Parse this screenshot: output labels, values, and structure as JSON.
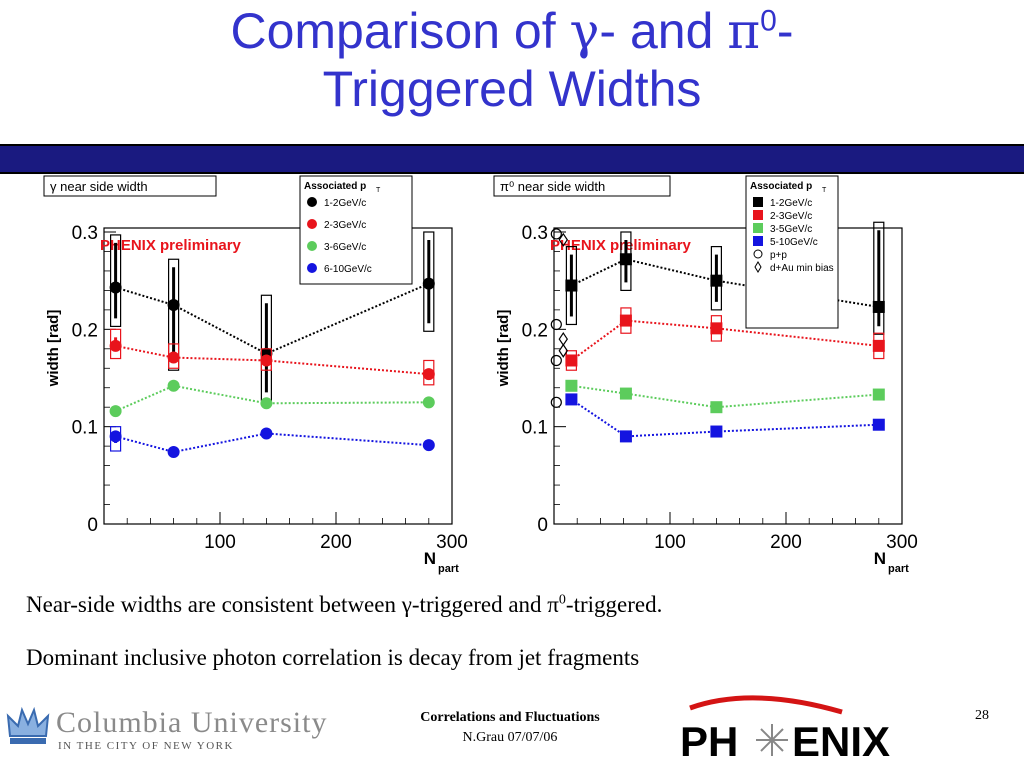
{
  "slide": {
    "title_line1_a": "Comparison of ",
    "title_gamma": "γ",
    "title_line1_b": "- and ",
    "title_pi": "π",
    "title_sup": "0",
    "title_line1_c": "-",
    "title_line2": "Triggered Widths",
    "body_line1_a": "Near-side widths are consistent between ",
    "body_gamma": "γ",
    "body_line1_b": "-triggered and ",
    "body_pi": "π",
    "body_sup": "0",
    "body_line1_c": "-triggered.",
    "body_line2": "Dominant inclusive photon correlation is decay from jet fragments",
    "footer_title": "Correlations and Fluctuations",
    "footer_author": "N.Grau 07/07/06",
    "page_number": "28",
    "columbia_name": "Columbia University",
    "columbia_sub": "IN THE CITY OF NEW YORK",
    "phenix_logo_text": "PHENIX",
    "colors": {
      "title": "#3333cc",
      "rule": "#1a1a80",
      "black": "#000000",
      "red": "#e8141c",
      "green": "#5ccc5c",
      "blue": "#1414e0"
    }
  },
  "chart_data": [
    {
      "type": "scatter",
      "title": "γ near side width",
      "watermark": "PHENIX preliminary",
      "ylabel": "width [rad]",
      "xlabel": "N",
      "xlabel_sub": "part",
      "xlim": [
        0,
        300
      ],
      "ylim": [
        0,
        0.3
      ],
      "xticks": [
        "100",
        "200",
        "300"
      ],
      "yticks": [
        "0",
        "0.1",
        "0.2",
        "0.3"
      ],
      "legend_title": "Associated p",
      "legend_title_sub": "T",
      "legend_position": "top-right",
      "series": [
        {
          "name": "1-2GeV/c",
          "color": "#000000",
          "marker": "circle",
          "x": [
            10,
            60,
            140,
            280
          ],
          "y": [
            0.243,
            0.225,
            0.175,
            0.247
          ],
          "syslow": [
            0.203,
            0.158,
            0.127,
            0.198
          ],
          "syshigh": [
            0.297,
            0.272,
            0.235,
            0.3
          ]
        },
        {
          "name": "2-3GeV/c",
          "color": "#e8141c",
          "marker": "circle",
          "x": [
            10,
            60,
            140,
            280
          ],
          "y": [
            0.183,
            0.171,
            0.168,
            0.154
          ],
          "syslow": [
            0.17,
            0.16,
            0.158,
            0.143
          ],
          "syshigh": [
            0.2,
            0.185,
            0.18,
            0.168
          ]
        },
        {
          "name": "3-6GeV/c",
          "color": "#5ccc5c",
          "marker": "circle",
          "x": [
            10,
            60,
            140,
            280
          ],
          "y": [
            0.116,
            0.142,
            0.124,
            0.125
          ]
        },
        {
          "name": "6-10GeV/c",
          "color": "#1414e0",
          "marker": "circle",
          "x": [
            10,
            60,
            140,
            280
          ],
          "y": [
            0.09,
            0.074,
            0.093,
            0.081
          ],
          "syslow": [
            0.075,
            null,
            null,
            null
          ],
          "syshigh": [
            0.1,
            null,
            null,
            null
          ]
        }
      ]
    },
    {
      "type": "scatter",
      "title": "π⁰ near side width",
      "watermark": "PHENIX preliminary",
      "ylabel": "width [rad]",
      "xlabel": "N",
      "xlabel_sub": "part",
      "xlim": [
        0,
        300
      ],
      "ylim": [
        0,
        0.3
      ],
      "xticks": [
        "100",
        "200",
        "300"
      ],
      "yticks": [
        "0",
        "0.1",
        "0.2",
        "0.3"
      ],
      "legend_title": "Associated p",
      "legend_title_sub": "T",
      "legend_position": "top-right",
      "series": [
        {
          "name": "1-2GeV/c",
          "color": "#000000",
          "marker": "square",
          "x": [
            15,
            62,
            140,
            280
          ],
          "y": [
            0.245,
            0.272,
            0.25,
            0.223
          ],
          "syslow": [
            0.205,
            0.24,
            0.22,
            0.195
          ],
          "syshigh": [
            0.285,
            0.3,
            0.285,
            0.31
          ]
        },
        {
          "name": "2-3GeV/c",
          "color": "#e8141c",
          "marker": "square",
          "x": [
            15,
            62,
            140,
            280
          ],
          "y": [
            0.168,
            0.209,
            0.201,
            0.183
          ],
          "syslow": [
            0.158,
            0.196,
            0.188,
            0.17
          ],
          "syshigh": [
            0.178,
            0.222,
            0.214,
            0.196
          ]
        },
        {
          "name": "3-5GeV/c",
          "color": "#5ccc5c",
          "marker": "square",
          "x": [
            15,
            62,
            140,
            280
          ],
          "y": [
            0.142,
            0.134,
            0.12,
            0.133
          ]
        },
        {
          "name": "5-10GeV/c",
          "color": "#1414e0",
          "marker": "square",
          "x": [
            15,
            62,
            140,
            280
          ],
          "y": [
            0.128,
            0.09,
            0.095,
            0.102
          ]
        },
        {
          "name": "p+p",
          "color": "#000000",
          "marker": "open-circle",
          "x": [
            2,
            2,
            2,
            2
          ],
          "y": [
            0.298,
            0.205,
            0.168,
            0.125
          ]
        },
        {
          "name": "d+Au min bias",
          "color": "#000000",
          "marker": "open-diamond",
          "x": [
            8,
            8,
            8
          ],
          "y": [
            0.292,
            0.19,
            0.178
          ]
        }
      ]
    }
  ]
}
